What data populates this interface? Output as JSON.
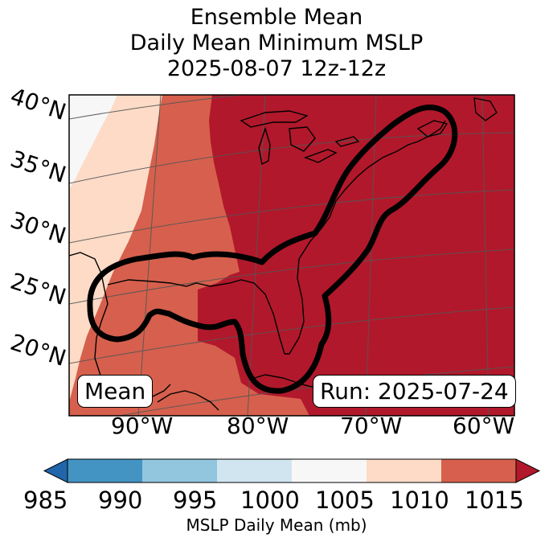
{
  "title": {
    "line1": "Ensemble Mean",
    "line2": "Daily Mean Minimum MSLP",
    "line3": "2025-08-07 12z-12z"
  },
  "map": {
    "lat_labels": [
      "40°N",
      "35°N",
      "30°N",
      "25°N",
      "20°N"
    ],
    "lon_labels": [
      "90°W",
      "80°W",
      "70°W",
      "60°W"
    ],
    "mean_label": "Mean",
    "run_label": "Run: 2025-07-24"
  },
  "colorbar": {
    "ticks": [
      "985",
      "990",
      "995",
      "1000",
      "1005",
      "1010",
      "1015"
    ],
    "label": "MSLP Daily Mean (mb)",
    "colors": [
      "#2166ac",
      "#4393c3",
      "#92c5de",
      "#d1e5f0",
      "#f7f7f7",
      "#fddbc7",
      "#d6604d",
      "#b2182b"
    ]
  },
  "chart_data": {
    "type": "heatmap",
    "title": "Ensemble Mean Daily Mean Minimum MSLP 2025-08-07 12z-12z",
    "variable": "MSLP Daily Mean (mb)",
    "levels": [
      985,
      990,
      995,
      1000,
      1005,
      1010,
      1015
    ],
    "extend": "both",
    "lat_range": [
      16,
      41
    ],
    "lon_range": [
      -98,
      -60
    ]
  }
}
